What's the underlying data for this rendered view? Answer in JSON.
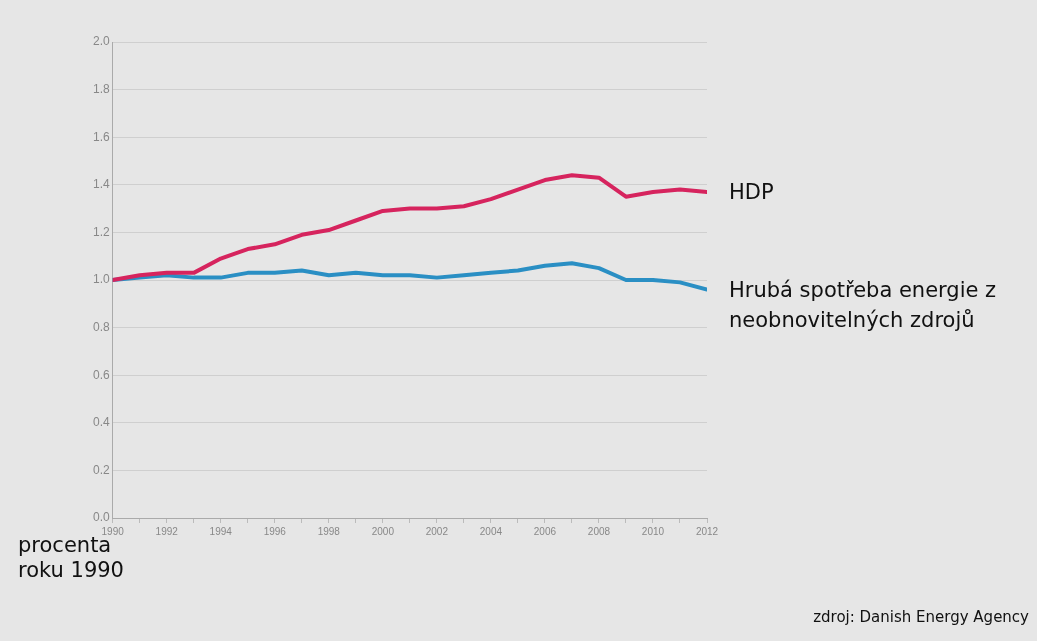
{
  "chart_data": {
    "type": "line",
    "ylabel": "procenta roku 1990",
    "annotations": [
      "zdroj: Danish Energy Agency"
    ],
    "x": [
      1990,
      1991,
      1992,
      1993,
      1994,
      1995,
      1996,
      1997,
      1998,
      1999,
      2000,
      2001,
      2002,
      2003,
      2004,
      2005,
      2006,
      2007,
      2008,
      2009,
      2010,
      2011,
      2012
    ],
    "series": [
      {
        "name": "HDP",
        "color": "#d6245e",
        "values": [
          1.0,
          1.02,
          1.03,
          1.03,
          1.09,
          1.13,
          1.15,
          1.19,
          1.21,
          1.25,
          1.29,
          1.3,
          1.3,
          1.31,
          1.34,
          1.38,
          1.42,
          1.44,
          1.43,
          1.35,
          1.37,
          1.38,
          1.37
        ]
      },
      {
        "name": "Hrubá spotřeba energie z neobnovitelných zdrojů",
        "color": "#2a8fc4",
        "values": [
          1.0,
          1.01,
          1.02,
          1.01,
          1.01,
          1.03,
          1.03,
          1.04,
          1.02,
          1.03,
          1.02,
          1.02,
          1.01,
          1.02,
          1.03,
          1.04,
          1.06,
          1.07,
          1.05,
          1.0,
          1.0,
          0.99,
          0.96
        ]
      }
    ],
    "xlim": [
      1990,
      2012
    ],
    "xticks": [
      1990,
      {
        "value": 1991,
        "label": null
      },
      1992,
      {
        "value": 1993,
        "label": null
      },
      1994,
      {
        "value": 1995,
        "label": null
      },
      1996,
      {
        "value": 1997,
        "label": null
      },
      1998,
      {
        "value": 1999,
        "label": null
      },
      2000,
      {
        "value": 2001,
        "label": null
      },
      2002,
      {
        "value": 2003,
        "label": null
      },
      2004,
      {
        "value": 2005,
        "label": null
      },
      2006,
      {
        "value": 2007,
        "label": null
      },
      2008,
      {
        "value": 2009,
        "label": null
      },
      2010,
      {
        "value": 2011,
        "label": null
      },
      2012
    ],
    "ylim": [
      0,
      2
    ],
    "yticks": [
      {
        "value": 0,
        "label": "0.0"
      },
      {
        "value": 0.2,
        "label": "0.2"
      },
      {
        "value": 0.4,
        "label": "0.4"
      },
      {
        "value": 0.6,
        "label": "0.6"
      },
      {
        "value": 0.8,
        "label": "0.8"
      },
      {
        "value": 1,
        "label": "1.0"
      },
      {
        "value": 1.2,
        "label": "1.2"
      },
      {
        "value": 1.4,
        "label": "1.4"
      },
      {
        "value": 1.6,
        "label": "1.6"
      },
      {
        "value": 1.8,
        "label": "1.8"
      },
      {
        "value": 2,
        "label": "2.0"
      }
    ],
    "grid": "y",
    "legend": false,
    "marker": "none",
    "line_style": "solid"
  }
}
